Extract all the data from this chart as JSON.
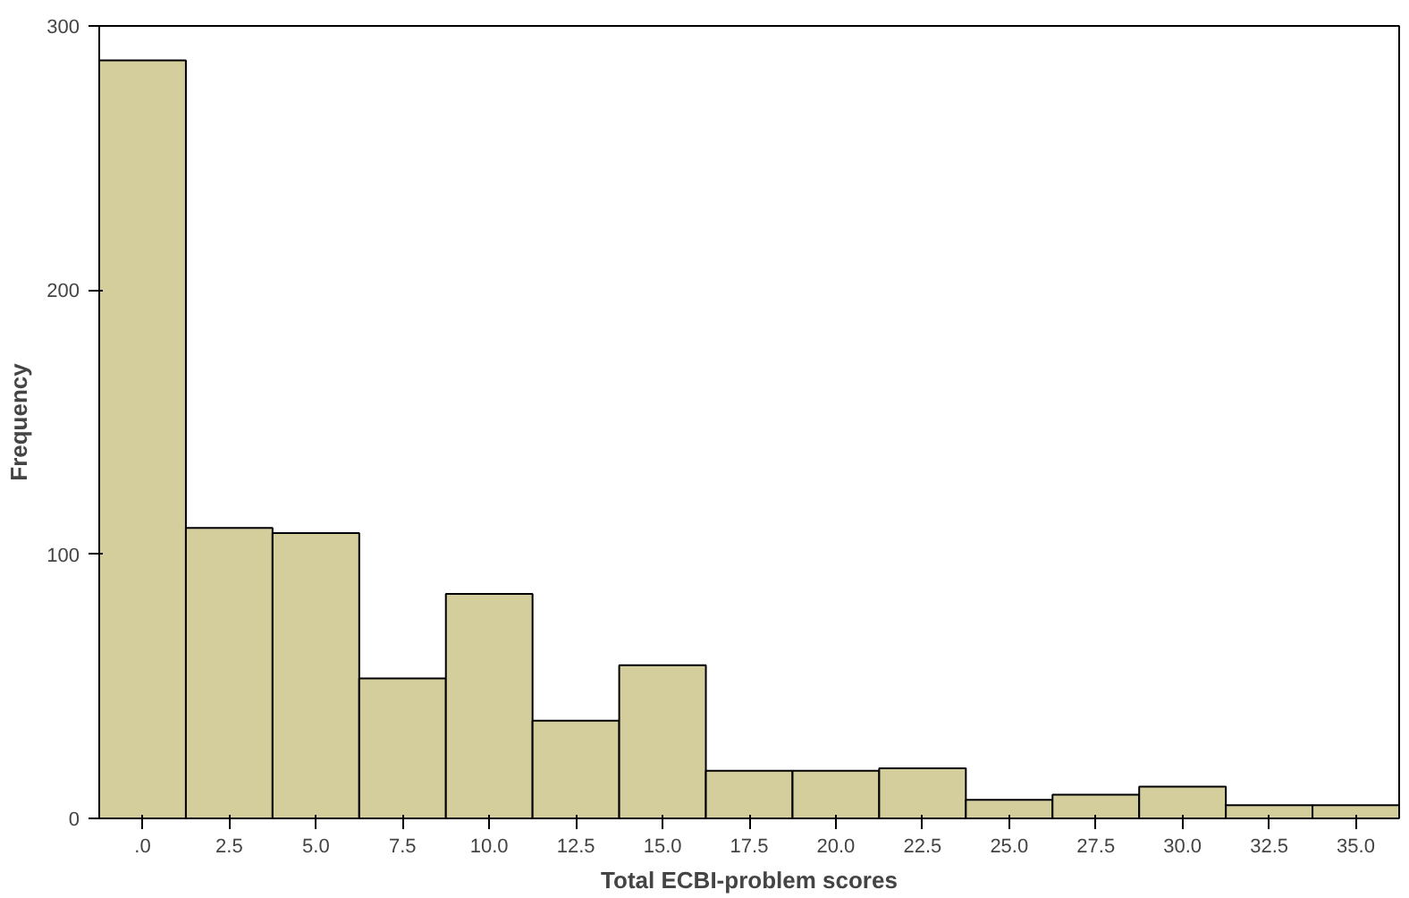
{
  "chart_data": {
    "type": "histogram",
    "xlabel": "Total ECBI-problem scores",
    "ylabel": "Frequency",
    "bins": [
      -1.25,
      1.25,
      3.75,
      6.25,
      8.75,
      11.25,
      13.75,
      16.25,
      18.75,
      21.25,
      23.75,
      26.25,
      28.75,
      31.25,
      33.75,
      36.25
    ],
    "values": [
      287,
      110,
      108,
      53,
      85,
      37,
      58,
      18,
      18,
      19,
      7,
      9,
      12,
      5,
      5
    ],
    "color": "#d4cd9c",
    "xlim": [
      -1.25,
      36.25
    ],
    "xticks": [
      {
        "value": 0,
        "label": ".0"
      },
      {
        "value": 2.5,
        "label": "2.5"
      },
      {
        "value": 5,
        "label": "5.0"
      },
      {
        "value": 7.5,
        "label": "7.5"
      },
      {
        "value": 10,
        "label": "10.0"
      },
      {
        "value": 12.5,
        "label": "12.5"
      },
      {
        "value": 15,
        "label": "15.0"
      },
      {
        "value": 17.5,
        "label": "17.5"
      },
      {
        "value": 20,
        "label": "20.0"
      },
      {
        "value": 22.5,
        "label": "22.5"
      },
      {
        "value": 25,
        "label": "25.0"
      },
      {
        "value": 27.5,
        "label": "27.5"
      },
      {
        "value": 30,
        "label": "30.0"
      },
      {
        "value": 32.5,
        "label": "32.5"
      },
      {
        "value": 35,
        "label": "35.0"
      }
    ],
    "ylim": [
      0,
      300
    ],
    "yticks": [
      0,
      100,
      200,
      300
    ],
    "grid": false
  }
}
